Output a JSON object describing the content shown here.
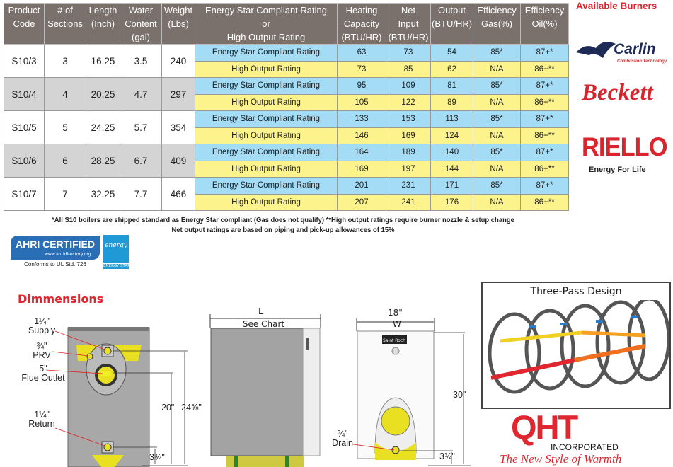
{
  "table": {
    "headers": [
      "Product Code",
      "# of Sections",
      "Length (Inch)",
      "Water Content (gal)",
      "Weight (Lbs)",
      "Energy Star Compliant Rating or High Output Rating",
      "Heating Capacity (BTU/HR)",
      "Net Input (BTU/HR)",
      "Output (BTU/HR)",
      "Efficiency Gas(%)",
      "Efficiency Oil(%)"
    ],
    "header_lines": [
      [
        "Product",
        "Code"
      ],
      [
        "# of",
        "Sections"
      ],
      [
        "Length",
        "(Inch)"
      ],
      [
        "Water",
        "Content",
        "(gal)"
      ],
      [
        "Weight",
        "(Lbs)"
      ],
      [
        "Energy Star Compliant Rating",
        "or",
        "High Output Rating"
      ],
      [
        "Heating",
        "Capacity",
        "(BTU/HR)"
      ],
      [
        "Net",
        "Input",
        "(BTU/HR)"
      ],
      [
        "Output",
        "(BTU/HR)"
      ],
      [
        "Efficiency",
        "Gas(%)"
      ],
      [
        "Efficiency",
        "Oil(%)"
      ]
    ],
    "rows": [
      {
        "code": "S10/3",
        "sections": "3",
        "length": "16.25",
        "water": "3.5",
        "weight": "240",
        "es": [
          "Energy Star Compliant Rating",
          "63",
          "73",
          "54",
          "85*",
          "87+*"
        ],
        "ho": [
          "High Output Rating",
          "73",
          "85",
          "62",
          "N/A",
          "86+**"
        ]
      },
      {
        "code": "S10/4",
        "sections": "4",
        "length": "20.25",
        "water": "4.7",
        "weight": "297",
        "es": [
          "Energy Star Compliant Rating",
          "95",
          "109",
          "81",
          "85*",
          "87+*"
        ],
        "ho": [
          "High Output Rating",
          "105",
          "122",
          "89",
          "N/A",
          "86+**"
        ]
      },
      {
        "code": "S10/5",
        "sections": "5",
        "length": "24.25",
        "water": "5.7",
        "weight": "354",
        "es": [
          "Energy Star Compliant Rating",
          "133",
          "153",
          "113",
          "85*",
          "87+*"
        ],
        "ho": [
          "High Output Rating",
          "146",
          "169",
          "124",
          "N/A",
          "86+**"
        ]
      },
      {
        "code": "S10/6",
        "sections": "6",
        "length": "28.25",
        "water": "6.7",
        "weight": "409",
        "es": [
          "Energy Star Compliant Rating",
          "164",
          "189",
          "140",
          "85*",
          "87+*"
        ],
        "ho": [
          "High Output Rating",
          "169",
          "197",
          "144",
          "N/A",
          "86+**"
        ]
      },
      {
        "code": "S10/7",
        "sections": "7",
        "length": "32.25",
        "water": "7.7",
        "weight": "466",
        "es": [
          "Energy Star Compliant Rating",
          "201",
          "231",
          "171",
          "85*",
          "87+*"
        ],
        "ho": [
          "High Output Rating",
          "207",
          "241",
          "176",
          "N/A",
          "86+**"
        ]
      }
    ]
  },
  "notes": {
    "line1": "*All S10 boilers are shipped standard as Energy Star compliant (Gas does not qualify) **High output ratings require burner nozzle & setup change",
    "line2": "Net output ratings are based on piping and pick-up allowances of 15%"
  },
  "ahri": {
    "logo": "AHRI CERTIFIED",
    "url": "www.ahridirectory.org",
    "conforms": "Conforms to UL Std. 726"
  },
  "energy_star": {
    "logo": "energy",
    "label": "ENERGY STAR"
  },
  "burners": {
    "title": "Available Burners",
    "carlin": "Carlin",
    "carlin_sub": "Combustion Technology",
    "beckett": "Beckett",
    "riello": "RIELLO",
    "riello_sub": "Energy For Life"
  },
  "dimensions": {
    "title": "Dimmensions",
    "front": {
      "supply_size": "1¼\"",
      "supply": "Supply",
      "prv_size": "¾\"",
      "prv": "PRV",
      "flue_size": "5\"",
      "flue": "Flue Outlet",
      "return_size": "1¼\"",
      "return": "Return",
      "h20": "20\"",
      "h24": "24⅝\"",
      "h3": "3¾\""
    },
    "side": {
      "l": "L",
      "see": "See Chart"
    },
    "rear": {
      "w_size": "18\"",
      "w": "W",
      "h30": "30\"",
      "drain_size": "¾\"",
      "drain": "Drain",
      "h3": "3¾\"",
      "badge": "Saint Roch"
    }
  },
  "three_pass": {
    "title": "Three-Pass Design"
  },
  "qht": {
    "logo": "QHT",
    "inc": "INCORPORATED",
    "tagline": "The New Style of Warmth"
  },
  "colors": {
    "header": "#7a706c",
    "energy_star_row": "#a4dcf6",
    "high_output_row": "#fcf38c",
    "accent_red": "#e0262e"
  }
}
